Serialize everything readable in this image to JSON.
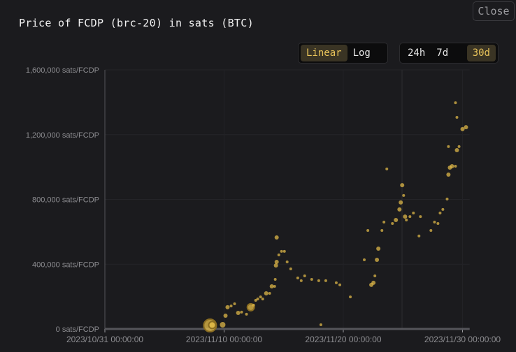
{
  "title": "Price of FCDP (brc-20) in sats (BTC)",
  "close_label": "Close",
  "scale_toggle": [
    {
      "label": "Linear",
      "active": true
    },
    {
      "label": "Log",
      "active": false
    }
  ],
  "range_toggle": [
    {
      "label": "24h",
      "active": false
    },
    {
      "label": "7d",
      "active": false
    },
    {
      "label": "30d",
      "active": true
    }
  ],
  "colors": {
    "point": "#e9c04a",
    "background": "#1b1b1e"
  },
  "chart_data": {
    "type": "scatter",
    "title": "Price of FCDP (brc-20) in sats (BTC)",
    "xlabel": "",
    "ylabel": "",
    "x_unit": "days since 2023/10/31 00:00:00",
    "xlim": [
      0,
      30.6
    ],
    "ylim": [
      0,
      1600000
    ],
    "grid": true,
    "y_ticks": [
      0,
      400000,
      800000,
      1200000,
      1600000
    ],
    "y_tick_labels": [
      "0 sats/FCDP",
      "400,000 sats/FCDP",
      "800,000 sats/FCDP",
      "1,200,000 sats/FCDP",
      "1,600,000 sats/FCDP"
    ],
    "x_ticks": [
      0,
      10,
      20,
      30
    ],
    "x_tick_labels": [
      "2023/10/31 00:00:00",
      "2023/11/10 00:00:00",
      "2023/11/20 00:00:00",
      "2023/11/30 00:00:00"
    ],
    "points": [
      [
        8.82,
        21600,
        9
      ],
      [
        9.0,
        24000,
        5
      ],
      [
        9.88,
        25900,
        4
      ],
      [
        10.12,
        82000,
        3
      ],
      [
        10.29,
        134000,
        3
      ],
      [
        10.59,
        142000,
        2
      ],
      [
        10.88,
        155000,
        2
      ],
      [
        11.18,
        99000,
        3
      ],
      [
        11.47,
        104000,
        2
      ],
      [
        11.88,
        91000,
        2
      ],
      [
        12.24,
        134000,
        5
      ],
      [
        12.47,
        147000,
        2
      ],
      [
        12.65,
        177000,
        2
      ],
      [
        12.82,
        185000,
        2
      ],
      [
        13.06,
        198000,
        2
      ],
      [
        13.24,
        185000,
        2
      ],
      [
        13.53,
        220000,
        3
      ],
      [
        13.82,
        220000,
        2
      ],
      [
        14.0,
        263000,
        3
      ],
      [
        14.24,
        263000,
        2
      ],
      [
        14.29,
        306000,
        2
      ],
      [
        14.35,
        392000,
        3
      ],
      [
        14.41,
        414000,
        3
      ],
      [
        14.41,
        565000,
        3
      ],
      [
        14.59,
        457000,
        2
      ],
      [
        14.82,
        479000,
        2
      ],
      [
        15.06,
        479000,
        2
      ],
      [
        15.29,
        414000,
        2
      ],
      [
        15.59,
        371000,
        2
      ],
      [
        16.18,
        315000,
        2
      ],
      [
        16.47,
        298000,
        2
      ],
      [
        16.76,
        328000,
        2
      ],
      [
        17.35,
        306000,
        2
      ],
      [
        17.94,
        298000,
        2
      ],
      [
        18.53,
        298000,
        2
      ],
      [
        19.41,
        285000,
        2
      ],
      [
        19.71,
        272000,
        2
      ],
      [
        20.59,
        198000,
        2
      ],
      [
        18.12,
        26000,
        2
      ],
      [
        21.76,
        427000,
        2
      ],
      [
        22.06,
        608000,
        2
      ],
      [
        22.35,
        272000,
        3
      ],
      [
        22.53,
        285000,
        3
      ],
      [
        22.65,
        328000,
        2
      ],
      [
        22.82,
        427000,
        3
      ],
      [
        22.94,
        496000,
        3
      ],
      [
        23.24,
        608000,
        2
      ],
      [
        23.41,
        660000,
        2
      ],
      [
        23.65,
        988000,
        2
      ],
      [
        24.12,
        651000,
        2
      ],
      [
        24.41,
        673000,
        3
      ],
      [
        24.71,
        738000,
        3
      ],
      [
        24.82,
        781000,
        3
      ],
      [
        24.94,
        888000,
        3
      ],
      [
        25.06,
        824000,
        2
      ],
      [
        25.18,
        694000,
        3
      ],
      [
        25.29,
        673000,
        2
      ],
      [
        25.59,
        694000,
        2
      ],
      [
        25.88,
        716000,
        2
      ],
      [
        26.35,
        574000,
        2
      ],
      [
        26.47,
        694000,
        2
      ],
      [
        27.35,
        608000,
        2
      ],
      [
        27.65,
        660000,
        2
      ],
      [
        27.94,
        651000,
        2
      ],
      [
        28.12,
        716000,
        2
      ],
      [
        28.35,
        738000,
        2
      ],
      [
        28.71,
        802000,
        2
      ],
      [
        28.82,
        953000,
        3
      ],
      [
        28.94,
        996000,
        3
      ],
      [
        29.12,
        1005000,
        3
      ],
      [
        29.41,
        1005000,
        2
      ],
      [
        29.53,
        1104000,
        3
      ],
      [
        29.71,
        1126000,
        2
      ],
      [
        29.41,
        1397000,
        2
      ],
      [
        29.53,
        1307000,
        2
      ],
      [
        30.0,
        1234000,
        3
      ],
      [
        30.29,
        1246000,
        3
      ],
      [
        28.82,
        1126000,
        2
      ]
    ]
  }
}
